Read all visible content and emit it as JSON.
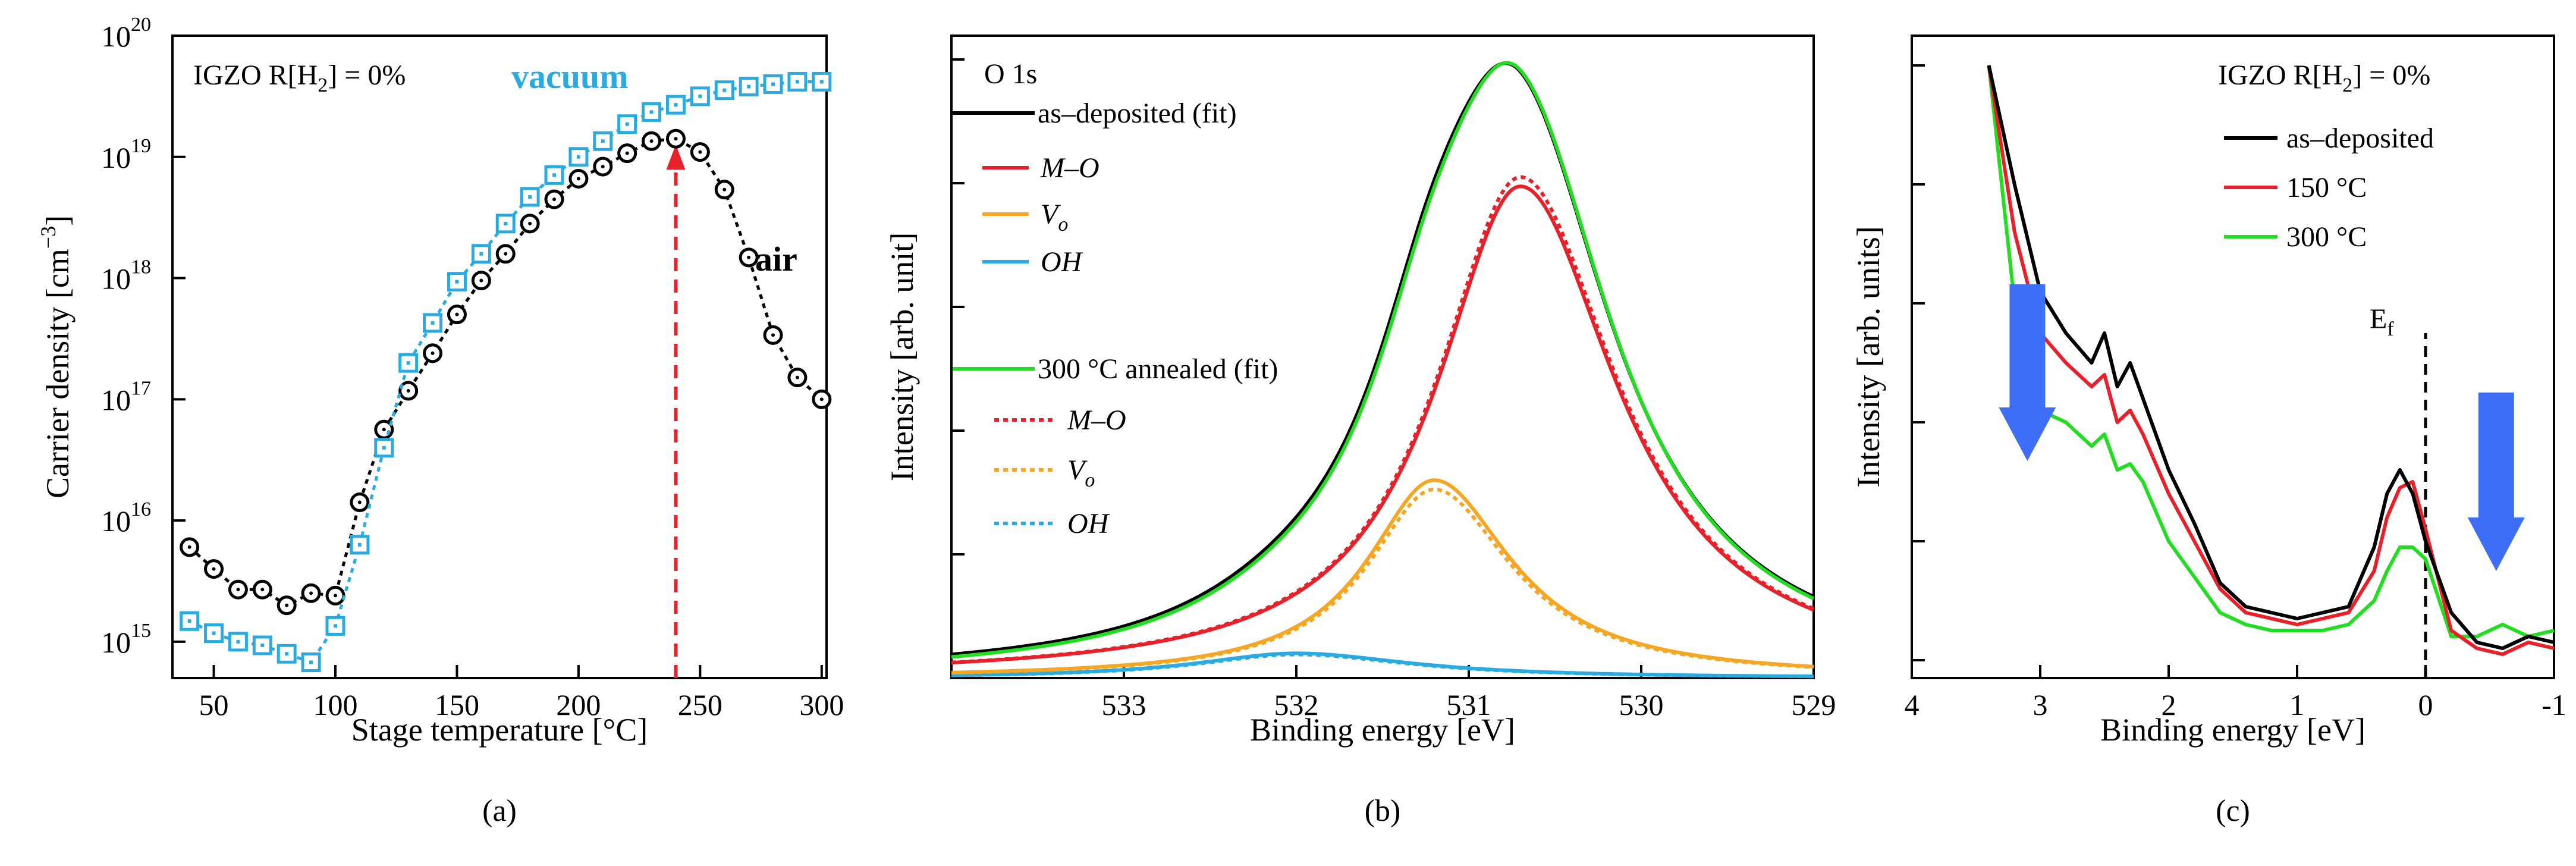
{
  "panels": {
    "a": {
      "letter": "(a)"
    },
    "b": {
      "letter": "(b)"
    },
    "c": {
      "letter": "(c)"
    }
  },
  "chart_data": [
    {
      "id": "a",
      "type": "scatter",
      "title": "IGZO R[H2] = 0%",
      "title_main": "IGZO R[H",
      "title_sub": "2",
      "title_tail": "] = 0%",
      "xlabel": "Stage temperature [°C]",
      "ylabel": "Carrier density [cm",
      "ylabel_sup": "−3",
      "ylabel_end": "]",
      "xlim": [
        33,
        302
      ],
      "ylim_log10": [
        14.7,
        20
      ],
      "yscale": "log",
      "xticks": [
        50,
        100,
        150,
        200,
        250,
        300
      ],
      "yticks_exp": [
        15,
        16,
        17,
        18,
        19,
        20
      ],
      "ytick_base": "10",
      "colors": {
        "air": "#000000",
        "vacuum": "#29abe2",
        "arrow": "#e8202a"
      },
      "series": [
        {
          "name": "air",
          "label": "air",
          "x": [
            40,
            50,
            60,
            70,
            80,
            90,
            100,
            110,
            120,
            130,
            140,
            150,
            160,
            170,
            180,
            190,
            200,
            210,
            220,
            230,
            240,
            250,
            260,
            270,
            280,
            290,
            300
          ],
          "log10y": [
            15.78,
            15.6,
            15.43,
            15.43,
            15.3,
            15.4,
            15.38,
            16.15,
            16.75,
            17.07,
            17.38,
            17.7,
            17.98,
            18.2,
            18.45,
            18.65,
            18.82,
            18.92,
            19.03,
            19.13,
            19.15,
            19.04,
            18.73,
            18.17,
            17.53,
            17.18,
            17.0
          ]
        },
        {
          "name": "vacuum",
          "label": "vacuum",
          "x": [
            40,
            50,
            60,
            70,
            80,
            90,
            100,
            110,
            120,
            130,
            140,
            150,
            160,
            170,
            180,
            190,
            200,
            210,
            220,
            230,
            240,
            250,
            260,
            270,
            280,
            290,
            300
          ],
          "log10y": [
            15.17,
            15.07,
            15.0,
            14.97,
            14.9,
            14.83,
            15.13,
            15.8,
            16.6,
            17.3,
            17.63,
            17.97,
            18.2,
            18.45,
            18.67,
            18.85,
            19.0,
            19.13,
            19.27,
            19.37,
            19.43,
            19.5,
            19.55,
            19.58,
            19.6,
            19.62,
            19.62
          ]
        }
      ],
      "annotation": {
        "x": 240,
        "log10y_from": 14.7,
        "log10y_to": 19.15
      }
    },
    {
      "id": "b",
      "type": "line",
      "title": "O 1s",
      "xlabel": "Binding energy [eV]",
      "ylabel": "Intensity [arb. unit]",
      "xlim": [
        534,
        529
      ],
      "ylim": [
        0,
        1.0
      ],
      "xticks": [
        533,
        532,
        531,
        530,
        529
      ],
      "components": {
        "as_deposited": {
          "M-O": {
            "center": 530.7,
            "amp": 0.795,
            "sigma": 0.75
          },
          "Vo": {
            "center": 531.2,
            "amp": 0.32,
            "sigma": 0.6
          },
          "OH": {
            "center": 532.0,
            "amp": 0.04,
            "sigma": 0.9
          }
        },
        "annealed_300": {
          "M-O": {
            "center": 530.7,
            "amp": 0.81,
            "sigma": 0.75
          },
          "Vo": {
            "center": 531.2,
            "amp": 0.305,
            "sigma": 0.6
          },
          "OH": {
            "center": 532.0,
            "amp": 0.038,
            "sigma": 0.9
          }
        }
      },
      "colors": {
        "total_asdep": "#000000",
        "total_ann": "#22dd22",
        "mo": "#e8202a",
        "vo": "#f5a623",
        "oh": "#29abe2"
      },
      "legend": {
        "group1": "as–deposited (fit)",
        "group2": "300 °C annealed (fit)",
        "mo": "M–O",
        "vo_main": "V",
        "vo_sub": "o",
        "oh": "OH"
      }
    },
    {
      "id": "c",
      "type": "line",
      "title": "IGZO R[H2] = 0%",
      "title_main": "IGZO R[H",
      "title_sub": "2",
      "title_tail": "] = 0%",
      "xlabel": "Binding energy [eV]",
      "ylabel": "Intensity [arb. units]",
      "xlim": [
        4,
        -1
      ],
      "ylim": [
        0,
        1.0
      ],
      "xticks": [
        4,
        3,
        2,
        1,
        0,
        -1
      ],
      "xtick_labels": [
        "4",
        "3",
        "2",
        "1",
        "0",
        "-1"
      ],
      "fermi_label": "E",
      "fermi_sub": "f",
      "colors": {
        "asdep": "#000000",
        "c150": "#e8202a",
        "c300": "#22dd22",
        "arrow": "#3d6ef5"
      },
      "series": [
        {
          "name": "as–deposited",
          "x": [
            3.4,
            3.2,
            3.0,
            2.8,
            2.6,
            2.5,
            2.4,
            2.3,
            2.2,
            2.0,
            1.8,
            1.6,
            1.4,
            1.2,
            1.0,
            0.8,
            0.6,
            0.4,
            0.3,
            0.2,
            0.1,
            0.0,
            -0.2,
            -0.4,
            -0.6,
            -0.8,
            -1.0
          ],
          "y": [
            1.0,
            0.8,
            0.62,
            0.55,
            0.5,
            0.55,
            0.46,
            0.5,
            0.44,
            0.32,
            0.23,
            0.13,
            0.09,
            0.08,
            0.07,
            0.08,
            0.09,
            0.19,
            0.28,
            0.32,
            0.28,
            0.2,
            0.08,
            0.03,
            0.02,
            0.04,
            0.03
          ]
        },
        {
          "name": "150 °C",
          "x": [
            3.4,
            3.2,
            3.0,
            2.8,
            2.6,
            2.5,
            2.4,
            2.3,
            2.2,
            2.0,
            1.8,
            1.6,
            1.4,
            1.2,
            1.0,
            0.8,
            0.6,
            0.4,
            0.3,
            0.2,
            0.1,
            0.0,
            -0.2,
            -0.4,
            -0.6,
            -0.8,
            -1.0
          ],
          "y": [
            1.0,
            0.72,
            0.55,
            0.5,
            0.46,
            0.48,
            0.4,
            0.42,
            0.38,
            0.28,
            0.2,
            0.12,
            0.08,
            0.07,
            0.06,
            0.07,
            0.08,
            0.15,
            0.24,
            0.29,
            0.3,
            0.22,
            0.05,
            0.02,
            0.01,
            0.03,
            0.02
          ]
        },
        {
          "name": "300 °C",
          "x": [
            3.4,
            3.2,
            3.0,
            2.8,
            2.6,
            2.5,
            2.4,
            2.3,
            2.2,
            2.0,
            1.8,
            1.6,
            1.4,
            1.2,
            1.0,
            0.8,
            0.6,
            0.4,
            0.3,
            0.2,
            0.1,
            0.0,
            -0.2,
            -0.4,
            -0.6,
            -0.8,
            -1.0
          ],
          "y": [
            1.0,
            0.6,
            0.42,
            0.4,
            0.36,
            0.38,
            0.32,
            0.33,
            0.3,
            0.2,
            0.14,
            0.08,
            0.06,
            0.05,
            0.05,
            0.05,
            0.06,
            0.1,
            0.15,
            0.19,
            0.19,
            0.17,
            0.04,
            0.04,
            0.06,
            0.04,
            0.05
          ]
        }
      ],
      "legend": [
        "as–deposited",
        "150 °C",
        "300 °C"
      ]
    }
  ]
}
